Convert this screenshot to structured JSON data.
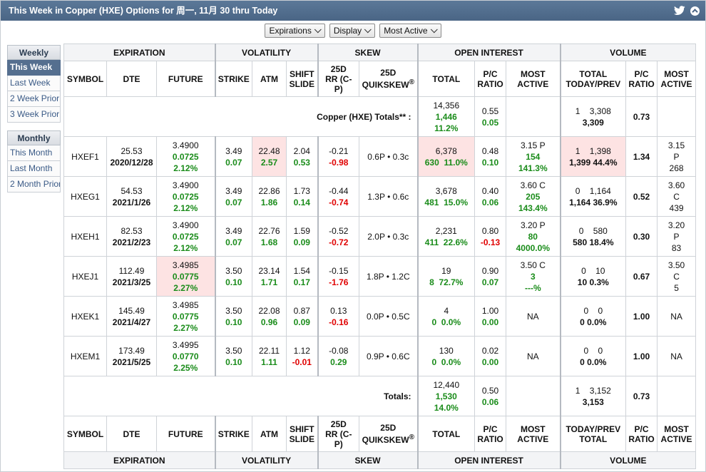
{
  "title": "This Week in Copper (HXE) Options for 周一, 11月 30 thru Today",
  "toolbar": {
    "expirations": "Expirations",
    "display": "Display",
    "most_active": "Most Active"
  },
  "sidebar": {
    "weekly_header": "Weekly",
    "weekly": [
      {
        "label": "This Week",
        "active": true
      },
      {
        "label": "Last Week",
        "active": false
      },
      {
        "label": "2 Week Prior",
        "active": false
      },
      {
        "label": "3 Week Prior",
        "active": false
      }
    ],
    "monthly_header": "Monthly",
    "monthly": [
      {
        "label": "This Month"
      },
      {
        "label": "Last Month"
      },
      {
        "label": "2 Month Prior"
      }
    ]
  },
  "groups": {
    "expiration": "EXPIRATION",
    "volatility": "VOLATILITY",
    "skew": "SKEW",
    "open_interest": "OPEN INTEREST",
    "volume": "VOLUME"
  },
  "cols": {
    "symbol": "SYMBOL",
    "dte": "DTE",
    "future": "FUTURE",
    "strike": "STRIKE",
    "atm": "ATM",
    "shift1": "SHIFT",
    "shift2": "SLIDE",
    "rr1": "25D",
    "rr2": "RR (C-",
    "rr3": "P)",
    "qs1": "25D",
    "qs2": "QUIKSKEW",
    "reg": "®",
    "oi_total": "TOTAL",
    "pc1": "P/C",
    "pc2": "RATIO",
    "ma1": "MOST",
    "ma2": "ACTIVE",
    "vol_top1": "TOTAL",
    "vol_top2": "TODAY/PREV",
    "vol_bot1": "TODAY/PREV",
    "vol_bot2": "TOTAL"
  },
  "summary": {
    "label": "Copper (HXE) Totals** :",
    "oi_total": "14,356",
    "oi_chg": "1,446",
    "oi_pct": "11.2%",
    "oi_pc": "0.55",
    "oi_pc_chg": "0.05",
    "vol_today": "1",
    "vol_prev": "3,308",
    "vol_total": "3,309",
    "vol_pc": "0.73"
  },
  "rows": [
    {
      "symbol": "HXEF1",
      "dte": "25.53",
      "date": "2020/12/28",
      "fut": "3.4900",
      "fut_chg": "0.0725",
      "fut_pct": "2.12%",
      "strike": "3.49",
      "strike_chg": "0.07",
      "atm": "22.48",
      "atm_chg": "2.57",
      "shift": "2.04",
      "shift_chg": "0.53",
      "rr": "-0.21",
      "rr_chg": "-0.98",
      "qs": "0.6P • 0.3c",
      "oi": "6,378",
      "oi_chg": "630",
      "oi_pct": "11.0%",
      "oi_pc": "0.48",
      "oi_pc_chg": "0.10",
      "ma": "3.15 P",
      "ma_chg": "154",
      "ma_pct": "141.3%",
      "v_today": "1",
      "v_prev": "1,398",
      "v_total": "1,399",
      "v_pct": "44.4%",
      "v_pc": "1.34",
      "vma1": "3.15",
      "vma2": "P",
      "vma3": "268"
    },
    {
      "symbol": "HXEG1",
      "dte": "54.53",
      "date": "2021/1/26",
      "fut": "3.4900",
      "fut_chg": "0.0725",
      "fut_pct": "2.12%",
      "strike": "3.49",
      "strike_chg": "0.07",
      "atm": "22.86",
      "atm_chg": "1.86",
      "shift": "1.73",
      "shift_chg": "0.14",
      "rr": "-0.44",
      "rr_chg": "-0.74",
      "qs": "1.3P • 0.6c",
      "oi": "3,678",
      "oi_chg": "481",
      "oi_pct": "15.0%",
      "oi_pc": "0.40",
      "oi_pc_chg": "0.06",
      "ma": "3.60 C",
      "ma_chg": "205",
      "ma_pct": "143.4%",
      "v_today": "0",
      "v_prev": "1,164",
      "v_total": "1,164",
      "v_pct": "36.9%",
      "v_pc": "0.52",
      "vma1": "3.60",
      "vma2": "C",
      "vma3": "439"
    },
    {
      "symbol": "HXEH1",
      "dte": "82.53",
      "date": "2021/2/23",
      "fut": "3.4900",
      "fut_chg": "0.0725",
      "fut_pct": "2.12%",
      "strike": "3.49",
      "strike_chg": "0.07",
      "atm": "22.76",
      "atm_chg": "1.68",
      "shift": "1.59",
      "shift_chg": "0.09",
      "rr": "-0.52",
      "rr_chg": "-0.72",
      "qs": "2.0P • 0.3c",
      "oi": "2,231",
      "oi_chg": "411",
      "oi_pct": "22.6%",
      "oi_pc": "0.80",
      "oi_pc_chg": "-0.13",
      "ma": "3.20 P",
      "ma_chg": "80",
      "ma_pct": "4000.0%",
      "v_today": "0",
      "v_prev": "580",
      "v_total": "580",
      "v_pct": "18.4%",
      "v_pc": "0.30",
      "vma1": "3.20",
      "vma2": "P",
      "vma3": "83"
    },
    {
      "symbol": "HXEJ1",
      "dte": "112.49",
      "date": "2021/3/25",
      "fut": "3.4985",
      "fut_chg": "0.0775",
      "fut_pct": "2.27%",
      "strike": "3.50",
      "strike_chg": "0.10",
      "atm": "23.14",
      "atm_chg": "1.71",
      "shift": "1.54",
      "shift_chg": "0.17",
      "rr": "-0.15",
      "rr_chg": "-1.76",
      "qs": "1.8P • 1.2C",
      "oi": "19",
      "oi_chg": "8",
      "oi_pct": "72.7%",
      "oi_pc": "0.90",
      "oi_pc_chg": "0.07",
      "ma": "3.50 C",
      "ma_chg": "3",
      "ma_pct": "---%",
      "v_today": "0",
      "v_prev": "10",
      "v_total": "10",
      "v_pct": "0.3%",
      "v_pc": "0.67",
      "vma1": "3.50",
      "vma2": "C",
      "vma3": "5"
    },
    {
      "symbol": "HXEK1",
      "dte": "145.49",
      "date": "2021/4/27",
      "fut": "3.4985",
      "fut_chg": "0.0775",
      "fut_pct": "2.27%",
      "strike": "3.50",
      "strike_chg": "0.10",
      "atm": "22.08",
      "atm_chg": "0.96",
      "shift": "0.87",
      "shift_chg": "0.09",
      "rr": "0.13",
      "rr_chg": "-0.16",
      "qs": "0.0P • 0.5C",
      "oi": "4",
      "oi_chg": "0",
      "oi_pct": "0.0%",
      "oi_pc": "1.00",
      "oi_pc_chg": "0.00",
      "ma": "NA",
      "v_today": "0",
      "v_prev": "0",
      "v_total": "0",
      "v_pct": "0.0%",
      "v_pc": "1.00",
      "vma1": "NA"
    },
    {
      "symbol": "HXEM1",
      "dte": "173.49",
      "date": "2021/5/25",
      "fut": "3.4995",
      "fut_chg": "0.0770",
      "fut_pct": "2.25%",
      "strike": "3.50",
      "strike_chg": "0.10",
      "atm": "22.11",
      "atm_chg": "1.11",
      "shift": "1.12",
      "shift_chg": "-0.01",
      "rr": "-0.08",
      "rr_chg": "0.29",
      "qs": "0.9P • 0.6C",
      "oi": "130",
      "oi_chg": "0",
      "oi_pct": "0.0%",
      "oi_pc": "0.02",
      "oi_pc_chg": "0.00",
      "ma": "NA",
      "v_today": "0",
      "v_prev": "0",
      "v_total": "0",
      "v_pct": "0.0%",
      "v_pc": "1.00",
      "vma1": "NA"
    }
  ],
  "totals": {
    "label": "Totals:",
    "oi_total": "12,440",
    "oi_chg": "1,530",
    "oi_pct": "14.0%",
    "oi_pc": "0.50",
    "oi_pc_chg": "0.06",
    "vol_today": "1",
    "vol_prev": "3,152",
    "vol_total": "3,153",
    "vol_pc": "0.73"
  },
  "colors": {
    "title_bg": "#4f6b8c",
    "highlight": "#fde3e3",
    "green": "#1a8c1a",
    "red": "#e00000"
  }
}
